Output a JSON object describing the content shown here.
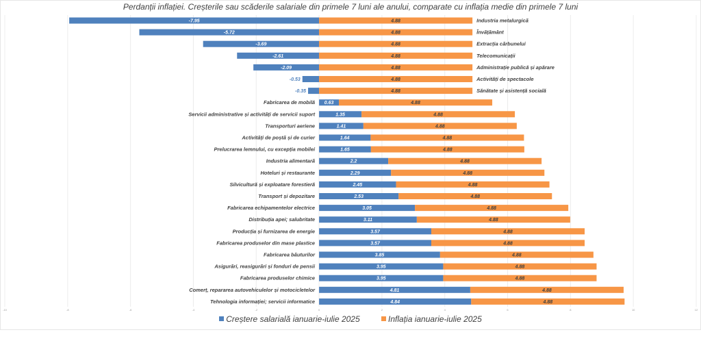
{
  "chart_data": {
    "type": "bar",
    "orientation": "horizontal",
    "stacked": true,
    "title": "Perdanții inflației. Creșterile  sau scăderile salariale din primele 7 luni ale anului, comparate cu inflația medie din primele 7 luni",
    "categories": [
      "Industria metalurgică",
      "Învățământ",
      "Extracția cărbunelui",
      "Telecomunicații",
      "Administrație publică și apărare",
      "Activități de spectacole",
      "Sănătate și asistență socială",
      "Fabricarea de mobilă",
      "Servicii administrative și activități de servicii suport",
      "Transporturi aeriene",
      "Activități de poștă și de curier",
      "Prelucrarea lemnului, cu excepția mobilei",
      "Industria alimentară",
      "Hoteluri și restaurante",
      "Silvicultură și exploatare forestieră",
      "Transport și depozitare",
      "Fabricarea echipamentelor  electrice",
      "Distribuția apei; salubritate",
      "Producția și furnizarea de energie",
      "Fabricarea produselor din mase plastice",
      "Fabricarea băuturilor",
      "Asigurări, reasigurări și fonduri de pensii",
      "Fabricarea produselor chimice",
      "Comerț, repararea autovehiculelor și motocicletelor",
      "Tehnologia informației;  servicii informatice"
    ],
    "series": [
      {
        "name": "Creștere salarială ianuarie-iulie 2025",
        "color": "#4f81bd",
        "values": [
          -7.95,
          -5.72,
          -3.69,
          -2.61,
          -2.09,
          -0.53,
          -0.35,
          0.63,
          1.35,
          1.41,
          1.64,
          1.65,
          2.2,
          2.29,
          2.45,
          2.53,
          3.05,
          3.11,
          3.57,
          3.57,
          3.85,
          3.95,
          3.95,
          4.81,
          4.84
        ]
      },
      {
        "name": "Inflația ianuarie-iulie 2025",
        "color": "#f79646",
        "values": [
          4.88,
          4.88,
          4.88,
          4.88,
          4.88,
          4.88,
          4.88,
          4.88,
          4.88,
          4.88,
          4.88,
          4.88,
          4.88,
          4.88,
          4.88,
          4.88,
          4.88,
          4.88,
          4.88,
          4.88,
          4.88,
          4.88,
          4.88,
          4.88,
          4.88
        ]
      }
    ],
    "xlim": [
      -10,
      12
    ],
    "xticks": [
      -10,
      -8,
      -6,
      -4,
      -2,
      0,
      2,
      4,
      6,
      8,
      10,
      12
    ],
    "grid": true,
    "legend": "bottom"
  }
}
